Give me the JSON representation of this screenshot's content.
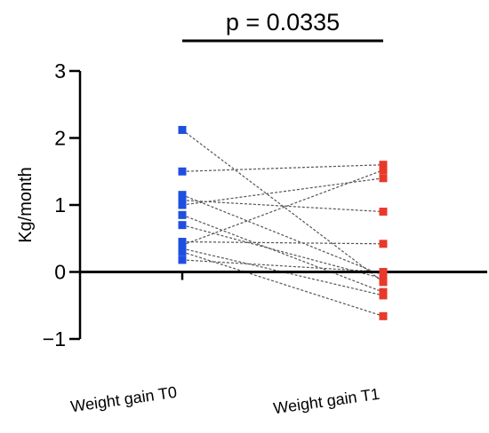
{
  "chart_data": {
    "type": "scatter",
    "subtype": "paired-before-after",
    "title": "",
    "xlabel": "",
    "ylabel": "Kg/month",
    "ylim": [
      -1,
      3
    ],
    "yticks": [
      {
        "value": -1,
        "label": "−1"
      },
      {
        "value": 0,
        "label": "0"
      },
      {
        "value": 1,
        "label": "1"
      },
      {
        "value": 2,
        "label": "2"
      },
      {
        "value": 3,
        "label": "3"
      }
    ],
    "categories": [
      "Weight gain T0",
      "Weight gain T1"
    ],
    "annotation": "p = 0.0335",
    "grid": false,
    "legend": "none",
    "colors": {
      "T0": "#1e4fe0",
      "T1": "#e8392a",
      "pair_line": "#555555"
    },
    "series": [
      {
        "name": "Weight gain T0",
        "values": [
          2.12,
          1.5,
          1.15,
          1.07,
          1.0,
          0.85,
          0.7,
          0.45,
          0.4,
          0.35,
          0.3,
          0.18
        ]
      },
      {
        "name": "Weight gain T1",
        "values": [
          -0.15,
          1.6,
          -0.05,
          0.9,
          1.4,
          -0.3,
          -0.1,
          0.42,
          1.52,
          -0.35,
          -0.66,
          0.0
        ]
      }
    ]
  }
}
